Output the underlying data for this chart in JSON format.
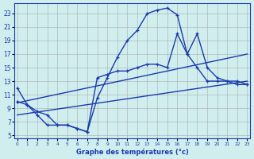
{
  "bg_color": "#d0eeee",
  "line_color": "#1a3aad",
  "grid_color": "#aaaaaa",
  "xlabel": "Graphe des températures (°c)",
  "ylabel_ticks": [
    5,
    7,
    9,
    11,
    13,
    15,
    17,
    19,
    21,
    23
  ],
  "xticks": [
    0,
    1,
    2,
    3,
    4,
    5,
    6,
    7,
    8,
    9,
    10,
    11,
    12,
    13,
    14,
    15,
    16,
    17,
    18,
    19,
    20,
    21,
    22,
    23
  ],
  "xlim": [
    -0.3,
    23.3
  ],
  "ylim": [
    4.5,
    24.5
  ],
  "series1_x": [
    0,
    1,
    2,
    3,
    4,
    5,
    6,
    7,
    8,
    9,
    10,
    11,
    12,
    13,
    14,
    15,
    16,
    17,
    18,
    19,
    20,
    21,
    22,
    23
  ],
  "series1_y": [
    12.0,
    9.5,
    8.5,
    8.0,
    6.5,
    6.5,
    6.0,
    5.5,
    10.5,
    13.5,
    16.5,
    19.0,
    20.5,
    23.0,
    23.5,
    23.8,
    22.8,
    17.0,
    15.0,
    13.0,
    13.0,
    13.0,
    12.5,
    12.5
  ],
  "series2_x": [
    0,
    1,
    2,
    3,
    4,
    5,
    6,
    7,
    8,
    9,
    10,
    11,
    12,
    13,
    14,
    15,
    16,
    17,
    18,
    19,
    20,
    21,
    22,
    23
  ],
  "series2_y": [
    10.0,
    9.5,
    8.0,
    6.5,
    6.5,
    6.5,
    6.0,
    5.5,
    13.5,
    14.0,
    14.5,
    14.5,
    15.0,
    15.5,
    15.5,
    15.0,
    20.0,
    17.0,
    20.0,
    15.0,
    13.5,
    13.0,
    13.0,
    12.5
  ],
  "series3_x": [
    0,
    23
  ],
  "series3_y": [
    9.8,
    17.0
  ],
  "series4_x": [
    0,
    23
  ],
  "series4_y": [
    8.0,
    13.0
  ]
}
